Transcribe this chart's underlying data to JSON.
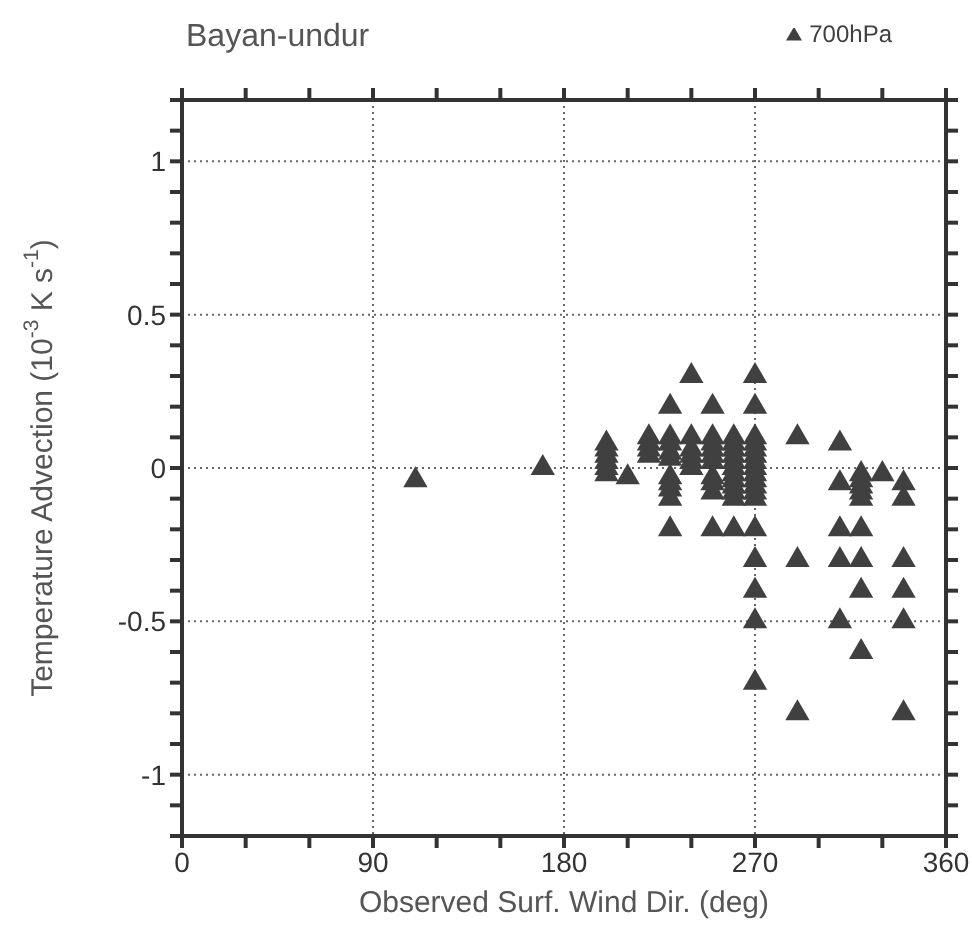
{
  "chart_data": {
    "type": "scatter",
    "title": "Bayan-undur",
    "xlabel": "Observed Surf. Wind Dir. (deg)",
    "ylabel": "Temperature Advection (10$^{-3}$ K s$^{-1}$)",
    "xlim": [
      0,
      360
    ],
    "xticks": [
      0,
      {
        "value": 30,
        "label": null
      },
      {
        "value": 60,
        "label": null
      },
      90,
      {
        "value": 120,
        "label": null
      },
      {
        "value": 150,
        "label": null
      },
      180,
      {
        "value": 210,
        "label": null
      },
      {
        "value": 240,
        "label": null
      },
      270,
      {
        "value": 300,
        "label": null
      },
      {
        "value": 330,
        "label": null
      },
      360
    ],
    "ylim": [
      -1.2,
      1.2
    ],
    "yticks": [
      {
        "value": -1.2,
        "label": null
      },
      {
        "value": -1.1,
        "label": null
      },
      -1,
      {
        "value": -0.9,
        "label": null
      },
      {
        "value": -0.8,
        "label": null
      },
      {
        "value": -0.7,
        "label": null
      },
      {
        "value": -0.6,
        "label": null
      },
      -0.5,
      {
        "value": -0.4,
        "label": null
      },
      {
        "value": -0.3,
        "label": null
      },
      {
        "value": -0.2,
        "label": null
      },
      {
        "value": -0.1,
        "label": null
      },
      0,
      {
        "value": 0.1,
        "label": null
      },
      {
        "value": 0.2,
        "label": null
      },
      {
        "value": 0.3,
        "label": null
      },
      {
        "value": 0.4,
        "label": null
      },
      0.5,
      {
        "value": 0.6,
        "label": null
      },
      {
        "value": 0.7,
        "label": null
      },
      {
        "value": 0.8,
        "label": null
      },
      {
        "value": 0.9,
        "label": null
      },
      1,
      {
        "value": 1.1,
        "label": null
      },
      {
        "value": 1.2,
        "label": null
      }
    ],
    "grid": true,
    "legend": "top right",
    "marker": "triangle",
    "series": [
      {
        "name": "700hPa",
        "color": "#404040",
        "x": [
          110,
          170,
          200,
          200,
          200,
          200,
          200,
          200,
          210,
          220,
          220,
          220,
          220,
          230,
          230,
          230,
          230,
          230,
          230,
          230,
          230,
          230,
          230,
          240,
          240,
          240,
          240,
          240,
          240,
          250,
          250,
          250,
          250,
          250,
          250,
          250,
          250,
          250,
          250,
          260,
          260,
          260,
          260,
          260,
          260,
          260,
          260,
          260,
          260,
          260,
          260,
          270,
          270,
          270,
          270,
          270,
          270,
          270,
          270,
          270,
          270,
          270,
          270,
          270,
          270,
          270,
          270,
          270,
          270,
          290,
          290,
          290,
          310,
          310,
          310,
          310,
          310,
          320,
          320,
          320,
          320,
          320,
          320,
          320,
          320,
          320,
          330,
          340,
          340,
          340,
          340,
          340,
          340
        ],
        "values": [
          -0.04,
          0,
          0.08,
          0.06,
          0.04,
          0.02,
          0,
          -0.02,
          -0.03,
          0.1,
          0.08,
          0.06,
          0.04,
          0.2,
          0.1,
          0.08,
          0.05,
          0.03,
          -0.03,
          -0.05,
          -0.07,
          -0.1,
          -0.2,
          0.3,
          0.1,
          0.06,
          0.04,
          0.02,
          0,
          0.2,
          0.1,
          0.08,
          0.06,
          0.04,
          0.02,
          -0.03,
          -0.05,
          -0.08,
          -0.2,
          0.1,
          0.08,
          0.06,
          0.04,
          0.02,
          0,
          -0.02,
          -0.04,
          -0.06,
          -0.08,
          -0.1,
          -0.2,
          0.3,
          0.2,
          0.1,
          0.08,
          0.06,
          0.04,
          0.02,
          0,
          -0.02,
          -0.04,
          -0.06,
          -0.08,
          -0.1,
          -0.2,
          -0.3,
          -0.4,
          -0.5,
          -0.7,
          0.1,
          -0.3,
          -0.8,
          0.08,
          -0.05,
          -0.2,
          -0.3,
          -0.5,
          -0.02,
          -0.04,
          -0.06,
          -0.08,
          -0.1,
          -0.2,
          -0.3,
          -0.4,
          -0.6,
          -0.02,
          -0.05,
          -0.1,
          -0.3,
          -0.4,
          -0.5,
          -0.8
        ]
      }
    ]
  }
}
